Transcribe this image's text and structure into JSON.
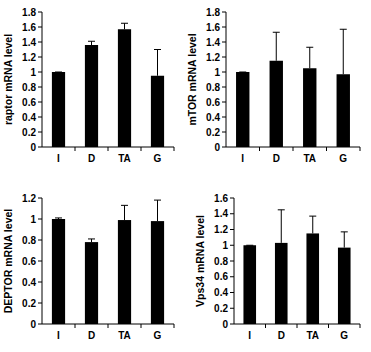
{
  "chart_data": [
    {
      "type": "bar",
      "ylabel": "raptor mRNA level",
      "categories": [
        "I",
        "D",
        "TA",
        "G"
      ],
      "values": [
        1.0,
        1.36,
        1.57,
        0.95
      ],
      "errors": [
        0,
        0.05,
        0.08,
        0.35
      ],
      "color": "#000000",
      "ylim": [
        0,
        1.8
      ],
      "yticks": [
        0,
        0.2,
        0.4,
        0.6,
        0.8,
        1,
        1.2,
        1.4,
        1.6,
        1.8
      ]
    },
    {
      "type": "bar",
      "ylabel": "mTOR  mRNA level",
      "categories": [
        "I",
        "D",
        "TA",
        "G"
      ],
      "values": [
        1.0,
        1.15,
        1.05,
        0.97
      ],
      "errors": [
        0,
        0.38,
        0.28,
        0.6
      ],
      "color": "#000000",
      "ylim": [
        0,
        1.8
      ],
      "yticks": [
        0,
        0.2,
        0.4,
        0.6,
        0.8,
        1,
        1.2,
        1.4,
        1.6,
        1.8
      ]
    },
    {
      "type": "bar",
      "ylabel": "DEPTOR  mRNA level",
      "categories": [
        "I",
        "D",
        "TA",
        "G"
      ],
      "values": [
        1.0,
        0.78,
        0.99,
        0.98
      ],
      "errors": [
        0.01,
        0.03,
        0.14,
        0.2
      ],
      "color": "#000000",
      "ylim": [
        0,
        1.2
      ],
      "yticks": [
        0,
        0.2,
        0.4,
        0.6,
        0.8,
        1,
        1.2
      ]
    },
    {
      "type": "bar",
      "ylabel": "Vps34  mRNA level",
      "categories": [
        "I",
        "D",
        "TA",
        "G"
      ],
      "values": [
        1.0,
        1.03,
        1.15,
        0.97
      ],
      "errors": [
        0,
        0.42,
        0.22,
        0.2
      ],
      "color": "#000000",
      "ylim": [
        0,
        1.6
      ],
      "yticks": [
        0,
        0.2,
        0.4,
        0.6,
        0.8,
        1,
        1.2,
        1.4,
        1.6
      ]
    }
  ]
}
